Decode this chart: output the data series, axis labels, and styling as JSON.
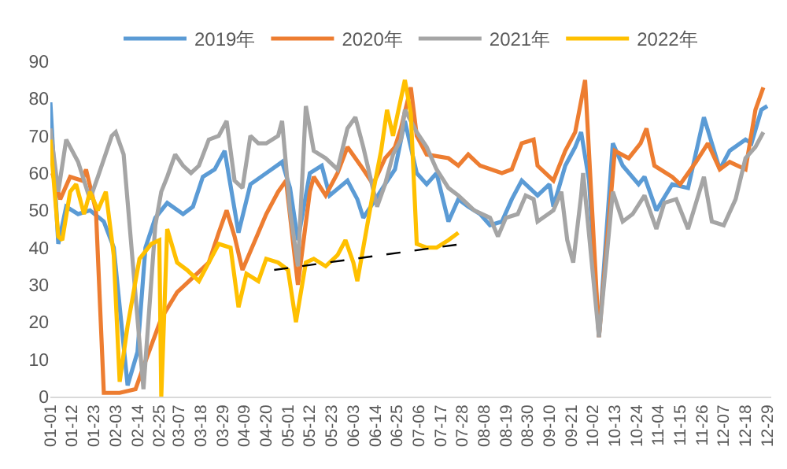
{
  "chart_data": {
    "type": "line",
    "xlim": [
      "--01-01",
      "--12-31"
    ],
    "xticks": [
      {
        "value": "--01-01",
        "label": "01-01"
      },
      {
        "value": "--01-12",
        "label": "01-12"
      },
      {
        "value": "--01-23",
        "label": "01-23"
      },
      {
        "value": "--02-03",
        "label": "02-03"
      },
      {
        "value": "--02-14",
        "label": "02-14"
      },
      {
        "value": "--02-25",
        "label": "02-25"
      },
      {
        "value": "--03-07",
        "label": "03-07"
      },
      {
        "value": "--03-18",
        "label": "03-18"
      },
      {
        "value": "--03-29",
        "label": "03-29"
      },
      {
        "value": "--04-09",
        "label": "04-09"
      },
      {
        "value": "--04-20",
        "label": "04-20"
      },
      {
        "value": "--05-01",
        "label": "05-01"
      },
      {
        "value": "--05-12",
        "label": "05-12"
      },
      {
        "value": "--05-23",
        "label": "05-23"
      },
      {
        "value": "--06-03",
        "label": "06-03"
      },
      {
        "value": "--06-14",
        "label": "06-14"
      },
      {
        "value": "--06-25",
        "label": "06-25"
      },
      {
        "value": "--07-06",
        "label": "07-06"
      },
      {
        "value": "--07-17",
        "label": "07-17"
      },
      {
        "value": "--07-28",
        "label": "07-28"
      },
      {
        "value": "--08-08",
        "label": "08-08"
      },
      {
        "value": "--08-19",
        "label": "08-19"
      },
      {
        "value": "--08-30",
        "label": "08-30"
      },
      {
        "value": "--09-10",
        "label": "09-10"
      },
      {
        "value": "--09-21",
        "label": "09-21"
      },
      {
        "value": "--10-02",
        "label": "10-02"
      },
      {
        "value": "--10-13",
        "label": "10-13"
      },
      {
        "value": "--10-24",
        "label": "10-24"
      },
      {
        "value": "--11-04",
        "label": "11-04"
      },
      {
        "value": "--11-15",
        "label": "11-15"
      },
      {
        "value": "--11-26",
        "label": "11-26"
      },
      {
        "value": "--12-07",
        "label": "12-07"
      },
      {
        "value": "--12-18",
        "label": "12-18"
      },
      {
        "value": "--12-29",
        "label": "12-29"
      }
    ],
    "ylim": [
      0,
      90
    ],
    "yticks": [
      0,
      10,
      20,
      30,
      40,
      50,
      60,
      70,
      80,
      90
    ],
    "legend": "top",
    "series": [
      {
        "name": "2019年",
        "color": "#5b9bd5",
        "x": [
          "--01-01",
          "--01-05",
          "--01-09",
          "--01-15",
          "--01-21",
          "--01-28",
          "--02-02",
          "--02-09",
          "--02-14",
          "--02-18",
          "--02-23",
          "--03-01",
          "--03-09",
          "--03-14",
          "--03-19",
          "--03-25",
          "--03-30",
          "--04-06",
          "--04-12",
          "--04-20",
          "--04-28",
          "--05-02",
          "--05-06",
          "--05-12",
          "--05-18",
          "--05-22",
          "--05-31",
          "--06-05",
          "--06-08",
          "--06-13",
          "--06-19",
          "--06-24",
          "--06-29",
          "--07-05",
          "--07-10",
          "--07-15",
          "--07-21",
          "--07-26",
          "--07-31",
          "--08-06",
          "--08-11",
          "--08-17",
          "--08-22",
          "--08-27",
          "--09-04",
          "--09-10",
          "--09-12",
          "--09-18",
          "--09-23",
          "--09-26",
          "--09-30",
          "--10-05",
          "--10-12",
          "--10-17",
          "--10-25",
          "--10-28",
          "--11-03",
          "--11-11",
          "--11-19",
          "--11-27",
          "--12-05",
          "--12-10",
          "--12-18",
          "--12-21",
          "--12-26",
          "--12-29"
        ],
        "values": [
          79,
          41,
          51,
          49,
          50,
          47,
          40,
          3,
          12,
          40,
          48,
          52,
          49,
          51,
          59,
          61,
          66,
          44,
          57,
          60,
          63,
          56,
          42,
          60,
          62,
          54,
          58,
          53,
          48,
          52,
          57,
          61,
          74,
          60,
          57,
          60,
          47,
          53,
          51,
          49,
          46,
          47,
          53,
          58,
          54,
          57,
          51,
          62,
          67,
          71,
          58,
          16,
          68,
          62,
          57,
          59,
          50,
          57,
          56,
          75,
          61,
          66,
          69,
          68,
          77,
          78
        ]
      },
      {
        "name": "2020年",
        "color": "#ed7d31",
        "x": [
          "--01-02",
          "--01-06",
          "--01-11",
          "--01-17",
          "--01-19",
          "--01-24",
          "--01-28",
          "--02-05",
          "--02-13",
          "--02-17",
          "--02-26",
          "--03-06",
          "--03-14",
          "--03-22",
          "--03-27",
          "--03-31",
          "--04-04",
          "--04-08",
          "--04-16",
          "--04-20",
          "--04-26",
          "--04-30",
          "--05-06",
          "--05-12",
          "--05-14",
          "--05-20",
          "--05-26",
          "--05-31",
          "--06-08",
          "--06-13",
          "--06-19",
          "--06-24",
          "--06-27",
          "--07-02",
          "--07-05",
          "--07-10",
          "--07-21",
          "--07-26",
          "--07-31",
          "--08-06",
          "--08-17",
          "--08-22",
          "--08-27",
          "--09-02",
          "--09-04",
          "--09-12",
          "--09-18",
          "--09-23",
          "--09-28",
          "--10-05",
          "--10-13",
          "--10-20",
          "--10-26",
          "--10-29",
          "--11-02",
          "--11-11",
          "--11-15",
          "--11-23",
          "--11-29",
          "--12-05",
          "--12-10",
          "--12-18",
          "--12-23",
          "--12-27"
        ],
        "values": [
          60,
          53,
          59,
          58,
          61,
          50,
          1,
          1,
          2,
          8,
          21,
          28,
          32,
          36,
          44,
          50,
          43,
          34,
          44,
          49,
          55,
          58,
          30,
          55,
          59,
          54,
          60,
          67,
          61,
          57,
          64,
          67,
          72,
          83,
          70,
          65,
          64,
          62,
          65,
          62,
          60,
          61,
          68,
          69,
          62,
          58,
          66,
          71,
          85,
          16,
          66,
          64,
          68,
          72,
          62,
          59,
          57,
          63,
          68,
          61,
          63,
          61,
          77,
          83
        ]
      },
      {
        "name": "2021年",
        "color": "#a5a5a5",
        "x": [
          "--01-01",
          "--01-05",
          "--01-09",
          "--01-15",
          "--01-21",
          "--01-25",
          "--02-01",
          "--02-03",
          "--02-07",
          "--02-17",
          "--02-23",
          "--02-26",
          "--03-01",
          "--03-05",
          "--03-09",
          "--03-13",
          "--03-17",
          "--03-22",
          "--03-27",
          "--03-31",
          "--04-04",
          "--04-08",
          "--04-12",
          "--04-16",
          "--04-20",
          "--04-26",
          "--04-28",
          "--05-02",
          "--05-06",
          "--05-10",
          "--05-14",
          "--05-20",
          "--05-26",
          "--05-31",
          "--06-04",
          "--06-08",
          "--06-15",
          "--06-19",
          "--06-23",
          "--06-27",
          "--06-29",
          "--07-05",
          "--07-10",
          "--07-15",
          "--07-21",
          "--07-26",
          "--08-03",
          "--08-11",
          "--08-15",
          "--08-19",
          "--08-25",
          "--08-29",
          "--09-02",
          "--09-04",
          "--09-12",
          "--09-16",
          "--09-19",
          "--09-22",
          "--09-26",
          "--09-27",
          "--10-05",
          "--10-12",
          "--10-17",
          "--10-22",
          "--10-28",
          "--11-03",
          "--11-07",
          "--11-13",
          "--11-19",
          "--11-27",
          "--12-01",
          "--12-07",
          "--12-13",
          "--12-18",
          "--12-23",
          "--12-27"
        ],
        "values": [
          72,
          55,
          69,
          63,
          53,
          59,
          70,
          71,
          65,
          2,
          46,
          55,
          59,
          65,
          62,
          60,
          62,
          69,
          70,
          74,
          58,
          56,
          70,
          68,
          68,
          70,
          74,
          50,
          35,
          78,
          66,
          64,
          61,
          72,
          75,
          67,
          51,
          57,
          65,
          69,
          77,
          71,
          67,
          61,
          56,
          54,
          50,
          48,
          43,
          48,
          49,
          54,
          53,
          47,
          50,
          55,
          42,
          36,
          54,
          60,
          16,
          55,
          47,
          49,
          54,
          45,
          52,
          53,
          45,
          59,
          47,
          46,
          53,
          64,
          67,
          71
        ]
      },
      {
        "name": "2022年",
        "color": "#ffc000",
        "x": [
          "--01-01",
          "--01-05",
          "--01-07",
          "--01-11",
          "--01-14",
          "--01-18",
          "--01-21",
          "--01-25",
          "--01-29",
          "--02-02",
          "--02-05",
          "--02-09",
          "--02-15",
          "--02-21",
          "--02-25",
          "--02-26",
          "--03-01",
          "--03-06",
          "--03-11",
          "--03-17",
          "--03-22",
          "--03-27",
          "--04-02",
          "--04-06",
          "--04-10",
          "--04-16",
          "--04-20",
          "--04-26",
          "--05-01",
          "--05-05",
          "--05-10",
          "--05-14",
          "--05-20",
          "--05-26",
          "--05-30",
          "--06-03",
          "--06-05",
          "--06-09",
          "--06-13",
          "--06-17",
          "--06-20",
          "--06-23",
          "--06-27",
          "--06-29",
          "--07-02",
          "--07-05",
          "--07-10",
          "--07-15",
          "--07-21",
          "--07-26"
        ],
        "values": [
          69,
          43,
          42,
          55,
          57,
          49,
          55,
          50,
          55,
          38,
          4,
          19,
          37,
          41,
          42,
          0,
          45,
          36,
          34,
          31,
          36,
          41,
          40,
          24,
          33,
          31,
          37,
          36,
          34,
          20,
          36,
          37,
          35,
          38,
          42,
          36,
          31,
          43,
          55,
          66,
          77,
          70,
          80,
          85,
          76,
          41,
          40,
          40,
          42,
          44
        ]
      },
      {
        "type": "line",
        "color": "#000000",
        "line_style": "dashed",
        "x": [
          "--04-24",
          "--07-28"
        ],
        "values": [
          34,
          41
        ]
      }
    ]
  }
}
